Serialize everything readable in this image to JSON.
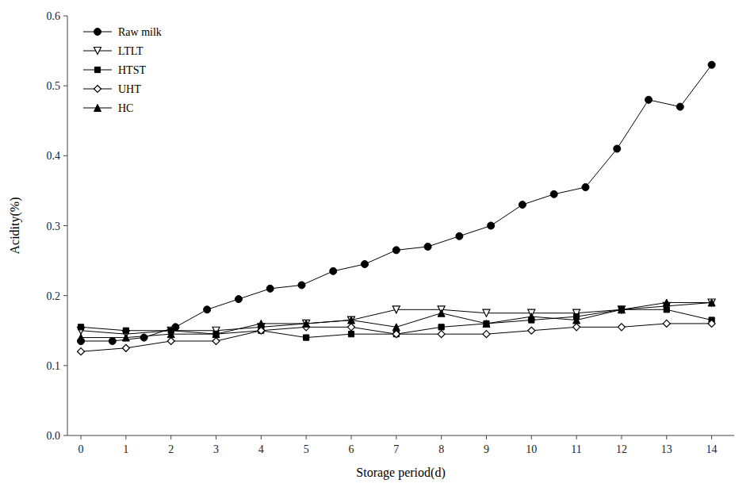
{
  "chart_data": {
    "type": "line",
    "x_label": "Storage period(d)",
    "y_label": "Acidity(%)",
    "x": [
      0,
      1,
      2,
      3,
      4,
      5,
      6,
      7,
      8,
      9,
      10,
      11,
      12,
      13,
      14
    ],
    "series": [
      {
        "name": "Raw milk",
        "color": "#000000",
        "marker": "circle",
        "x": [
          0,
          0.7,
          1.4,
          2.1,
          2.8,
          3.5,
          4.2,
          4.9,
          5.6,
          6.3,
          7.0,
          7.7,
          8.4,
          9.1,
          9.8,
          10.5,
          11.2,
          11.9,
          12.6,
          13.3,
          14
        ],
        "values": [
          0.135,
          0.135,
          0.14,
          0.155,
          0.18,
          0.195,
          0.21,
          0.215,
          0.235,
          0.245,
          0.265,
          0.27,
          0.285,
          0.3,
          0.33,
          0.345,
          0.355,
          0.41,
          0.48,
          0.47,
          0.53
        ]
      },
      {
        "name": "LTLT",
        "color": "#000000",
        "marker": "triangle-down-open",
        "values": [
          0.15,
          0.145,
          0.15,
          0.15,
          0.155,
          0.16,
          0.165,
          0.18,
          0.18,
          0.175,
          0.175,
          0.175,
          0.18,
          0.185,
          0.19
        ]
      },
      {
        "name": "HTST",
        "color": "#000000",
        "marker": "square",
        "values": [
          0.155,
          0.15,
          0.15,
          0.145,
          0.15,
          0.14,
          0.145,
          0.145,
          0.155,
          0.16,
          0.165,
          0.17,
          0.18,
          0.18,
          0.165
        ]
      },
      {
        "name": "UHT",
        "color": "#000000",
        "marker": "diamond-open",
        "values": [
          0.12,
          0.125,
          0.135,
          0.135,
          0.15,
          0.155,
          0.155,
          0.145,
          0.145,
          0.145,
          0.15,
          0.155,
          0.155,
          0.16,
          0.16
        ]
      },
      {
        "name": "HC",
        "color": "#000000",
        "marker": "triangle-up",
        "values": [
          0.14,
          0.14,
          0.145,
          0.145,
          0.16,
          0.16,
          0.165,
          0.155,
          0.175,
          0.16,
          0.17,
          0.165,
          0.18,
          0.19,
          0.19
        ]
      }
    ],
    "xlim": [
      -0.3,
      14.5
    ],
    "ylim": [
      0.0,
      0.6
    ],
    "xticks": [
      0,
      1,
      2,
      3,
      4,
      5,
      6,
      7,
      8,
      9,
      10,
      11,
      12,
      13,
      14
    ],
    "yticks": [
      {
        "value": 0.0,
        "label": "0.0"
      },
      0.1,
      0.2,
      0.3,
      0.4,
      0.5,
      0.6
    ],
    "grid": false,
    "legend": "upper left"
  }
}
